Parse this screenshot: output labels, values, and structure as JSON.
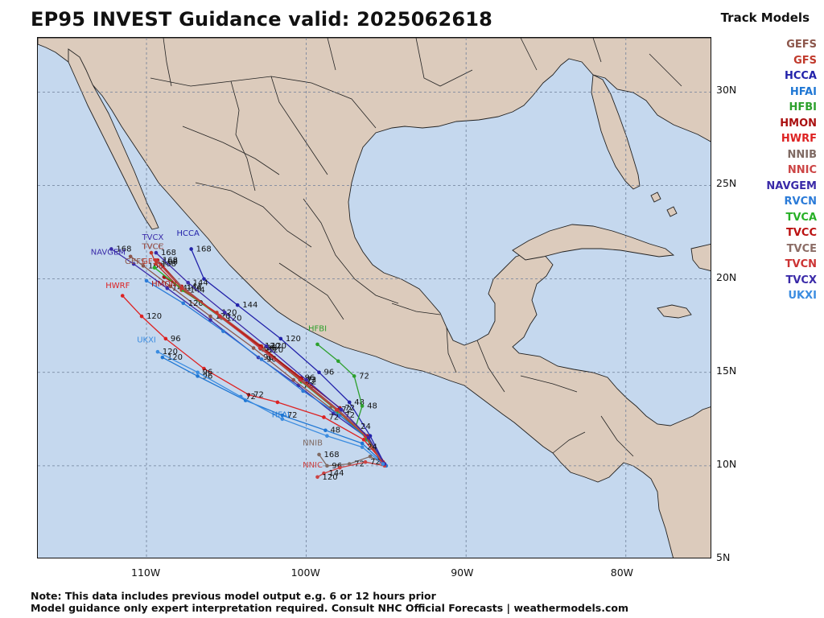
{
  "title": "EP95 INVEST Guidance valid: 2025062618",
  "legend": {
    "title": "Track Models",
    "models": [
      {
        "name": "GEFS",
        "color": "#8c564b"
      },
      {
        "name": "GFS",
        "color": "#c0392b"
      },
      {
        "name": "HCCA",
        "color": "#2222aa"
      },
      {
        "name": "HFAI",
        "color": "#1f77d4"
      },
      {
        "name": "HFBI",
        "color": "#2ca02c"
      },
      {
        "name": "HMON",
        "color": "#aa1111"
      },
      {
        "name": "HWRF",
        "color": "#dd2222"
      },
      {
        "name": "NNIB",
        "color": "#7f6a63"
      },
      {
        "name": "NNIC",
        "color": "#cc4444"
      },
      {
        "name": "NAVGEM",
        "color": "#3a2aa8"
      },
      {
        "name": "RVCN",
        "color": "#2b7bd8"
      },
      {
        "name": "TVCA",
        "color": "#27b027"
      },
      {
        "name": "TVCC",
        "color": "#bb1111"
      },
      {
        "name": "TVCE",
        "color": "#8c6d66"
      },
      {
        "name": "TVCN",
        "color": "#cc3333"
      },
      {
        "name": "TVCX",
        "color": "#3a2aa8"
      },
      {
        "name": "UKXI",
        "color": "#3b8ce0"
      }
    ]
  },
  "map": {
    "extent": {
      "lon_min": -116.8,
      "lon_max": -74.6,
      "lat_min": 5,
      "lat_max": 32.9
    },
    "lat_ticks": [
      {
        "value": 30,
        "label": "30N"
      },
      {
        "value": 25,
        "label": "25N"
      },
      {
        "value": 20,
        "label": "20N"
      },
      {
        "value": 15,
        "label": "15N"
      },
      {
        "value": 10,
        "label": "10N"
      },
      {
        "value": 5,
        "label": "5N"
      }
    ],
    "lon_ticks": [
      {
        "value": -110,
        "label": "110W"
      },
      {
        "value": -100,
        "label": "100W"
      },
      {
        "value": -90,
        "label": "90W"
      },
      {
        "value": -80,
        "label": "80W"
      }
    ],
    "ocean_color": "#c5d8ee",
    "land_color": "#dccbbc"
  },
  "tracks": [
    {
      "model": "NAVGEM",
      "color": "#3a2aa8",
      "points": [
        [
          -95.2,
          10.1
        ],
        [
          -96.2,
          11.5
        ],
        [
          -98.3,
          12.8
        ],
        [
          -100.5,
          14.3
        ],
        [
          -103,
          15.8
        ],
        [
          -106,
          17.8
        ],
        [
          -108.7,
          19.5
        ],
        [
          -110.8,
          20.8
        ],
        [
          -112.2,
          21.6
        ]
      ],
      "hour_labels": [
        {
          "i": 3,
          "t": "72"
        },
        {
          "i": 4,
          "t": "96"
        },
        {
          "i": 6,
          "t": "144"
        },
        {
          "i": 8,
          "t": "168"
        }
      ]
    },
    {
      "model": "GEFS",
      "color": "#8c564b",
      "points": [
        [
          -95.3,
          10.2
        ],
        [
          -96.4,
          11.7
        ],
        [
          -98.5,
          13.1
        ],
        [
          -100.8,
          14.6
        ],
        [
          -103.3,
          16.3
        ],
        [
          -106,
          18
        ],
        [
          -108.5,
          19.6
        ],
        [
          -110.2,
          20.7
        ],
        [
          -111,
          21.2
        ]
      ],
      "hour_labels": [
        {
          "i": 4,
          "t": "96"
        },
        {
          "i": 5,
          "t": "120"
        },
        {
          "i": 7,
          "t": "168"
        }
      ]
    },
    {
      "model": "GFS",
      "color": "#c0392b",
      "points": [
        [
          -95.3,
          10.3
        ],
        [
          -96.3,
          11.6
        ],
        [
          -98.1,
          13
        ],
        [
          -100.4,
          14.7
        ],
        [
          -102.8,
          16.4
        ],
        [
          -105.6,
          18.2
        ],
        [
          -107.8,
          19.4
        ],
        [
          -109.4,
          20.8
        ],
        [
          -109.7,
          21.4
        ]
      ],
      "hour_labels": [
        {
          "i": 3,
          "t": "96"
        },
        {
          "i": 5,
          "t": "120"
        },
        {
          "i": 7,
          "t": "168"
        }
      ]
    },
    {
      "model": "HCCA",
      "color": "#2222aa",
      "points": [
        [
          -95.1,
          10.1
        ],
        [
          -96,
          11.6
        ],
        [
          -97.3,
          13.4
        ],
        [
          -99.2,
          15
        ],
        [
          -101.6,
          16.8
        ],
        [
          -104.3,
          18.6
        ],
        [
          -106.4,
          20
        ],
        [
          -107.2,
          21.6
        ]
      ],
      "hour_labels": [
        {
          "i": 2,
          "t": "48"
        },
        {
          "i": 3,
          "t": "96"
        },
        {
          "i": 4,
          "t": "120"
        },
        {
          "i": 5,
          "t": "144"
        },
        {
          "i": 7,
          "t": "168"
        }
      ]
    },
    {
      "model": "HFAI",
      "color": "#1f77d4",
      "points": [
        [
          -95,
          10
        ],
        [
          -96.5,
          11.2
        ],
        [
          -98.8,
          11.9
        ],
        [
          -101.5,
          12.7
        ],
        [
          -103.8,
          13.5
        ],
        [
          -106.8,
          14.8
        ],
        [
          -109,
          15.8
        ]
      ],
      "hour_labels": [
        {
          "i": 2,
          "t": "48"
        },
        {
          "i": 3,
          "t": "72"
        },
        {
          "i": 5,
          "t": "96"
        },
        {
          "i": 6,
          "t": "120"
        }
      ]
    },
    {
      "model": "HFBI",
      "color": "#2ca02c",
      "points": [
        [
          -95.2,
          10.1
        ],
        [
          -96.2,
          11.4
        ],
        [
          -96.9,
          12.1
        ],
        [
          -96.5,
          13.2
        ],
        [
          -97,
          14.8
        ],
        [
          -98,
          15.6
        ],
        [
          -99.3,
          16.5
        ]
      ],
      "hour_labels": [
        {
          "i": 2,
          "t": "24"
        },
        {
          "i": 3,
          "t": "48"
        },
        {
          "i": 4,
          "t": "72"
        }
      ]
    },
    {
      "model": "HMON",
      "color": "#aa1111",
      "points": [
        [
          -95.3,
          10.3
        ],
        [
          -96.2,
          11.6
        ],
        [
          -97.9,
          13.1
        ],
        [
          -100.3,
          14.7
        ],
        [
          -102.9,
          16.4
        ],
        [
          -105.4,
          18
        ],
        [
          -107.6,
          19.4
        ],
        [
          -108.9,
          20.1
        ]
      ],
      "hour_labels": [
        {
          "i": 2,
          "t": "72"
        },
        {
          "i": 4,
          "t": "120"
        },
        {
          "i": 6,
          "t": "144"
        }
      ]
    },
    {
      "model": "HWRF",
      "color": "#dd2222",
      "points": [
        [
          -95.2,
          10.2
        ],
        [
          -96.4,
          11.4
        ],
        [
          -98.9,
          12.6
        ],
        [
          -101.8,
          13.4
        ],
        [
          -103.6,
          13.8
        ],
        [
          -106.4,
          15.2
        ],
        [
          -108.8,
          16.8
        ],
        [
          -110.3,
          18
        ],
        [
          -111.5,
          19.1
        ]
      ],
      "hour_labels": [
        {
          "i": 2,
          "t": "72"
        },
        {
          "i": 4,
          "t": "72"
        },
        {
          "i": 6,
          "t": "96"
        },
        {
          "i": 7,
          "t": "120"
        }
      ]
    },
    {
      "model": "NNIB",
      "color": "#7f6a63",
      "points": [
        [
          -95.1,
          10.1
        ],
        [
          -96,
          10.5
        ],
        [
          -97.3,
          10.1
        ],
        [
          -98.7,
          10
        ],
        [
          -99.2,
          10.6
        ]
      ],
      "hour_labels": [
        {
          "i": 2,
          "t": "72"
        },
        {
          "i": 3,
          "t": "96"
        },
        {
          "i": 4,
          "t": "168"
        }
      ]
    },
    {
      "model": "NNIC",
      "color": "#cc4444",
      "points": [
        [
          -95.1,
          10
        ],
        [
          -96.3,
          10.2
        ],
        [
          -97.9,
          9.9
        ],
        [
          -98.9,
          9.6
        ],
        [
          -99.3,
          9.4
        ]
      ],
      "hour_labels": [
        {
          "i": 1,
          "t": "72"
        },
        {
          "i": 3,
          "t": "144"
        },
        {
          "i": 4,
          "t": "120"
        }
      ]
    },
    {
      "model": "RVCN",
      "color": "#2b7bd8",
      "points": [
        [
          -95.2,
          10.1
        ],
        [
          -96.1,
          11.4
        ],
        [
          -97.9,
          12.7
        ],
        [
          -100.2,
          14
        ],
        [
          -102.8,
          15.7
        ],
        [
          -105.2,
          17.2
        ],
        [
          -107.7,
          18.7
        ],
        [
          -110,
          19.9
        ]
      ],
      "hour_labels": [
        {
          "i": 2,
          "t": "72"
        },
        {
          "i": 4,
          "t": "96"
        },
        {
          "i": 6,
          "t": "120"
        }
      ]
    },
    {
      "model": "TVCA",
      "color": "#27b027",
      "points": [
        [
          -95.2,
          10.1
        ],
        [
          -96.2,
          11.5
        ],
        [
          -98,
          12.9
        ],
        [
          -100.3,
          14.5
        ],
        [
          -102.7,
          16.2
        ],
        [
          -105.3,
          17.9
        ],
        [
          -107.7,
          19.4
        ],
        [
          -109.5,
          20.6
        ]
      ],
      "hour_labels": [
        {
          "i": 3,
          "t": "72"
        },
        {
          "i": 5,
          "t": "120"
        }
      ]
    },
    {
      "model": "TVCC",
      "color": "#bb1111",
      "points": [
        [
          -95.2,
          10.2
        ],
        [
          -96.2,
          11.6
        ],
        [
          -98,
          13
        ],
        [
          -100.3,
          14.6
        ],
        [
          -102.8,
          16.3
        ],
        [
          -105.4,
          18
        ],
        [
          -107.8,
          19.6
        ],
        [
          -109.3,
          21
        ]
      ],
      "hour_labels": [
        {
          "i": 3,
          "t": "72"
        },
        {
          "i": 4,
          "t": "96"
        },
        {
          "i": 6,
          "t": "144"
        },
        {
          "i": 7,
          "t": "168"
        }
      ]
    },
    {
      "model": "TVCE",
      "color": "#8c6d66",
      "points": [
        [
          -95.2,
          10.1
        ],
        [
          -96.1,
          11.5
        ],
        [
          -97.9,
          12.9
        ],
        [
          -100.2,
          14.5
        ],
        [
          -102.7,
          16.2
        ],
        [
          -105.3,
          17.9
        ],
        [
          -107.7,
          19.5
        ],
        [
          -109.3,
          20.9
        ]
      ],
      "hour_labels": [
        {
          "i": 4,
          "t": "120"
        },
        {
          "i": 7,
          "t": "168"
        }
      ]
    },
    {
      "model": "TVCN",
      "color": "#cc3333",
      "points": [
        [
          -95.3,
          10.2
        ],
        [
          -96.3,
          11.6
        ],
        [
          -98.1,
          13
        ],
        [
          -100.4,
          14.6
        ],
        [
          -102.9,
          16.3
        ],
        [
          -105.4,
          18
        ],
        [
          -107.8,
          19.5
        ],
        [
          -109.4,
          21
        ]
      ],
      "hour_labels": [
        {
          "i": 2,
          "t": "72"
        },
        {
          "i": 4,
          "t": "96"
        },
        {
          "i": 6,
          "t": "144"
        }
      ]
    },
    {
      "model": "TVCX",
      "color": "#3a2aa8",
      "points": [
        [
          -95.1,
          10.1
        ],
        [
          -96.1,
          11.5
        ],
        [
          -97.8,
          13
        ],
        [
          -100,
          14.6
        ],
        [
          -102.5,
          16.4
        ],
        [
          -105.1,
          18.2
        ],
        [
          -107.4,
          19.8
        ],
        [
          -109.4,
          21.4
        ]
      ],
      "hour_labels": [
        {
          "i": 4,
          "t": "120"
        },
        {
          "i": 6,
          "t": "144"
        },
        {
          "i": 7,
          "t": "168"
        }
      ]
    },
    {
      "model": "UKXI",
      "color": "#3b8ce0",
      "points": [
        [
          -95.2,
          10.1
        ],
        [
          -96.5,
          11
        ],
        [
          -98.7,
          11.6
        ],
        [
          -101.5,
          12.5
        ],
        [
          -104.1,
          13.7
        ],
        [
          -106.8,
          15
        ],
        [
          -109.3,
          16.1
        ]
      ],
      "hour_labels": [
        {
          "i": 1,
          "t": "24"
        },
        {
          "i": 4,
          "t": "72"
        },
        {
          "i": 5,
          "t": "96"
        },
        {
          "i": 6,
          "t": "120"
        }
      ]
    }
  ],
  "model_labels": [
    {
      "text": "TVCX",
      "color": "#3a2aa8",
      "lon": -109.6,
      "lat": 22.1
    },
    {
      "text": "TVCC",
      "color": "#bb1111",
      "lon": -109.6,
      "lat": 21.6
    },
    {
      "text": "TVCE",
      "color": "#8c6d66",
      "lon": -109.6,
      "lat": 21.6
    },
    {
      "text": "HCCA",
      "color": "#2222aa",
      "lon": -107.4,
      "lat": 22.3
    },
    {
      "text": "NAVGEM",
      "color": "#3a2aa8",
      "lon": -112.4,
      "lat": 21.3
    },
    {
      "text": "GEFS",
      "color": "#8c564b",
      "lon": -110.7,
      "lat": 20.8
    },
    {
      "text": "GFS",
      "color": "#c0392b",
      "lon": -109.8,
      "lat": 20.8
    },
    {
      "text": "HMON",
      "color": "#aa1111",
      "lon": -108.9,
      "lat": 19.6
    },
    {
      "text": "HWRF",
      "color": "#dd2222",
      "lon": -111.8,
      "lat": 19.5
    },
    {
      "text": "UKXI",
      "color": "#3b8ce0",
      "lon": -110,
      "lat": 16.6
    },
    {
      "text": "HFBI",
      "color": "#2ca02c",
      "lon": -99.3,
      "lat": 17.2
    },
    {
      "text": "HFAI",
      "color": "#1f77d4",
      "lon": -101.6,
      "lat": 12.6
    },
    {
      "text": "NNIB",
      "color": "#7f6a63",
      "lon": -99.6,
      "lat": 11.1
    },
    {
      "text": "NNIC",
      "color": "#cc4444",
      "lon": -99.6,
      "lat": 9.9
    }
  ],
  "note": {
    "line1": "Note: This data includes previous model output e.g. 6 or 12 hours prior",
    "line2": "Model guidance only expert interpretation required. Consult NHC Official Forecasts | weathermodels.com"
  }
}
